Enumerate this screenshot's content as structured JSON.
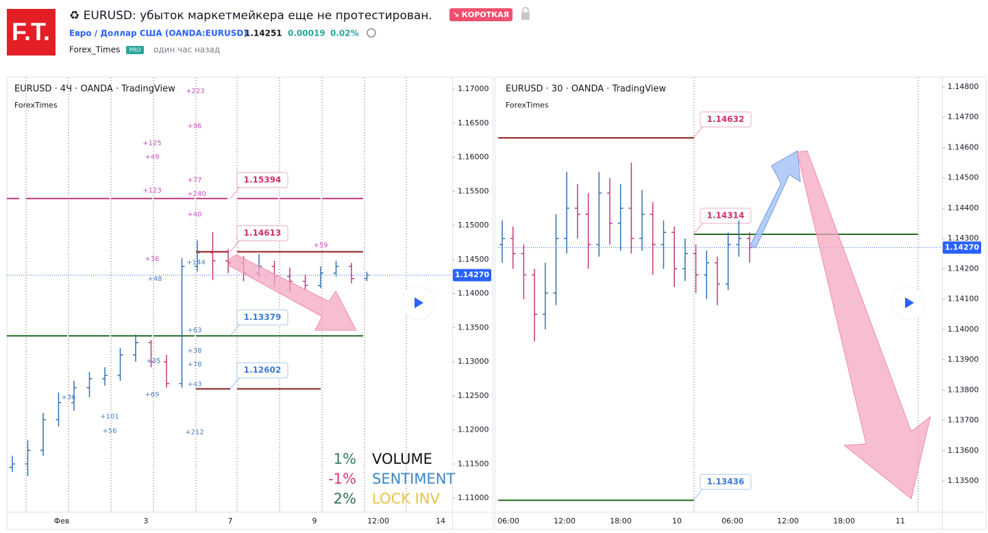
{
  "header": {
    "logo": "F.T.",
    "title": "♻ EURUSD: убыток маркетмейкера еще не протестирован.",
    "badge": "↘ КОРОТКАЯ",
    "symbol": "Евро / Доллар США (OANDA:EURUSD)",
    "price": "1.14251",
    "change": "0.00019",
    "change_pct": "0.02%",
    "author": "Forex_Times",
    "author_badge": "PRO",
    "time": "один час назад"
  },
  "left_chart": {
    "title": "EURUSD · 4Ч · OANDA · TradingView",
    "subtitle": "ForexTimes",
    "yticks": [
      {
        "value": 1.17,
        "label": "1.17000"
      },
      {
        "value": 1.165,
        "label": "1.16500"
      },
      {
        "value": 1.16,
        "label": "1.16000"
      },
      {
        "value": 1.155,
        "label": "1.15500"
      },
      {
        "value": 1.15,
        "label": "1.15000"
      },
      {
        "value": 1.145,
        "label": "1.14500"
      },
      {
        "value": 1.14,
        "label": "1.14000"
      },
      {
        "value": 1.135,
        "label": "1.13500"
      },
      {
        "value": 1.13,
        "label": "1.13000"
      },
      {
        "value": 1.125,
        "label": "1.12500"
      },
      {
        "value": 1.12,
        "label": "1.12000"
      },
      {
        "value": 1.115,
        "label": "1.11500"
      },
      {
        "value": 1.11,
        "label": "1.11000"
      }
    ],
    "xticks": [
      "Фев",
      "3",
      "7",
      "9",
      "12:00",
      "14"
    ],
    "last_price": {
      "value": 1.1427,
      "label": "1.14270"
    },
    "levels": [
      {
        "value": 1.15394,
        "label": "1.15394",
        "color": "#c2357b",
        "label_color": "#d0306a"
      },
      {
        "value": 1.14613,
        "label": "1.14613",
        "color": "#8b1a1a",
        "label_color": "#d0306a"
      },
      {
        "value": 1.13379,
        "label": "1.13379",
        "color": "#1e6b1e",
        "label_color": "#3a7bd5"
      },
      {
        "value": 1.12602,
        "label": "1.12602",
        "color": "#8b1a1a",
        "label_color": "#3a7bd5"
      }
    ],
    "bars": [
      [
        1.1145,
        1.1162,
        1.1138,
        1.115
      ],
      [
        1.115,
        1.1185,
        1.1132,
        1.117
      ],
      [
        1.117,
        1.1225,
        1.1162,
        1.1215
      ],
      [
        1.1215,
        1.1255,
        1.1205,
        1.124
      ],
      [
        1.124,
        1.1272,
        1.1228,
        1.1262
      ],
      [
        1.1262,
        1.1285,
        1.1248,
        1.1275
      ],
      [
        1.1275,
        1.1292,
        1.1265,
        1.128
      ],
      [
        1.128,
        1.132,
        1.1272,
        1.131
      ],
      [
        1.131,
        1.134,
        1.13,
        1.1328
      ],
      [
        1.1328,
        1.1332,
        1.1292,
        1.13
      ],
      [
        1.13,
        1.131,
        1.1262,
        1.1268
      ],
      [
        1.1268,
        1.1452,
        1.1262,
        1.144
      ],
      [
        1.144,
        1.1478,
        1.1432,
        1.146
      ],
      [
        1.146,
        1.149,
        1.142,
        1.1448
      ],
      [
        1.1448,
        1.1465,
        1.143,
        1.1445
      ],
      [
        1.1445,
        1.1455,
        1.1418,
        1.143
      ],
      [
        1.143,
        1.1458,
        1.1425,
        1.144
      ],
      [
        1.144,
        1.1448,
        1.141,
        1.1425
      ],
      [
        1.1425,
        1.1438,
        1.1402,
        1.1418
      ],
      [
        1.1418,
        1.1428,
        1.1405,
        1.1412
      ],
      [
        1.1412,
        1.144,
        1.1408,
        1.143
      ],
      [
        1.143,
        1.1448,
        1.1425,
        1.144
      ],
      [
        1.144,
        1.1445,
        1.1415,
        1.1422
      ],
      [
        1.1422,
        1.1432,
        1.1418,
        1.1427
      ]
    ],
    "annotations": [
      {
        "text": "+223",
        "color": "#c84fc0"
      },
      {
        "text": "+96",
        "color": "#c84fc0"
      },
      {
        "text": "+125",
        "color": "#c84fc0"
      },
      {
        "text": "+49",
        "color": "#c84fc0"
      },
      {
        "text": "+77",
        "color": "#c84fc0"
      },
      {
        "text": "+123",
        "color": "#c84fc0"
      },
      {
        "text": "+240",
        "color": "#c84fc0"
      },
      {
        "text": "+40",
        "color": "#c84fc0"
      },
      {
        "text": "+59",
        "color": "#c84fc0"
      },
      {
        "text": "+36",
        "color": "#c84fc0"
      },
      {
        "text": "+144",
        "color": "#4a7fc0"
      },
      {
        "text": "+48",
        "color": "#4a7fc0"
      },
      {
        "text": "+63",
        "color": "#4a7fc0"
      },
      {
        "text": "+35",
        "color": "#4a7fc0"
      },
      {
        "text": "+38",
        "color": "#4a7fc0"
      },
      {
        "text": "+78",
        "color": "#4a7fc0"
      },
      {
        "text": "+69",
        "color": "#4a7fc0"
      },
      {
        "text": "+36",
        "color": "#4a7fc0"
      },
      {
        "text": "+101",
        "color": "#4a7fc0"
      },
      {
        "text": "+56",
        "color": "#4a7fc0"
      },
      {
        "text": "+43",
        "color": "#4a7fc0"
      },
      {
        "text": "+212",
        "color": "#4a7fc0"
      }
    ],
    "legend": [
      {
        "pct": "1%",
        "pct_color": "#2e7d5a",
        "name": "VOLUME",
        "name_color": "#111111"
      },
      {
        "pct": "-1%",
        "pct_color": "#d63a6e",
        "name": "SENTIMENT",
        "name_color": "#3a86c8"
      },
      {
        "pct": "2%",
        "pct_color": "#2e6f5a",
        "name": "LOCK INV",
        "name_color": "#e8c34a"
      }
    ]
  },
  "right_chart": {
    "title": "EURUSD · 30 · OANDA · TradingView",
    "subtitle": "ForexTimes",
    "yticks": [
      {
        "value": 1.148,
        "label": "1.14800"
      },
      {
        "value": 1.147,
        "label": "1.14700"
      },
      {
        "value": 1.146,
        "label": "1.14600"
      },
      {
        "value": 1.145,
        "label": "1.14500"
      },
      {
        "value": 1.144,
        "label": "1.14400"
      },
      {
        "value": 1.143,
        "label": "1.14300"
      },
      {
        "value": 1.142,
        "label": "1.14200"
      },
      {
        "value": 1.141,
        "label": "1.14100"
      },
      {
        "value": 1.14,
        "label": "1.14000"
      },
      {
        "value": 1.139,
        "label": "1.13900"
      },
      {
        "value": 1.138,
        "label": "1.13800"
      },
      {
        "value": 1.137,
        "label": "1.13700"
      },
      {
        "value": 1.136,
        "label": "1.13600"
      },
      {
        "value": 1.135,
        "label": "1.13500"
      }
    ],
    "xticks": [
      "06:00",
      "12:00",
      "18:00",
      "10",
      "06:00",
      "12:00",
      "18:00",
      "11"
    ],
    "last_price": {
      "value": 1.1427,
      "label": "1.14270"
    },
    "levels": [
      {
        "value": 1.14632,
        "label": "1.14632",
        "color": "#8b1a1a",
        "label_color": "#d0306a"
      },
      {
        "value": 1.14314,
        "label": "1.14314",
        "color": "#1e6b1e",
        "label_color": "#d0306a"
      },
      {
        "value": 1.13436,
        "label": "1.13436",
        "color": "#1e6b1e",
        "label_color": "#3a7bd5"
      }
    ],
    "bars": [
      [
        1.1428,
        1.1436,
        1.1422,
        1.143
      ],
      [
        1.143,
        1.1434,
        1.142,
        1.1425
      ],
      [
        1.1425,
        1.1428,
        1.141,
        1.1418
      ],
      [
        1.1418,
        1.142,
        1.1396,
        1.1405
      ],
      [
        1.1405,
        1.1422,
        1.14,
        1.1412
      ],
      [
        1.1412,
        1.1438,
        1.1408,
        1.143
      ],
      [
        1.143,
        1.1452,
        1.1425,
        1.144
      ],
      [
        1.144,
        1.1448,
        1.143,
        1.1438
      ],
      [
        1.1438,
        1.1445,
        1.142,
        1.1428
      ],
      [
        1.1428,
        1.1452,
        1.1424,
        1.1445
      ],
      [
        1.1445,
        1.145,
        1.1428,
        1.1435
      ],
      [
        1.1435,
        1.1448,
        1.1426,
        1.144
      ],
      [
        1.144,
        1.1455,
        1.1425,
        1.143
      ],
      [
        1.143,
        1.1446,
        1.1426,
        1.1438
      ],
      [
        1.1438,
        1.1442,
        1.1418,
        1.1428
      ],
      [
        1.1428,
        1.1436,
        1.142,
        1.1432
      ],
      [
        1.1432,
        1.1434,
        1.1414,
        1.142
      ],
      [
        1.142,
        1.143,
        1.1416,
        1.1425
      ],
      [
        1.1425,
        1.1428,
        1.1412,
        1.1418
      ],
      [
        1.1418,
        1.1426,
        1.141,
        1.1422
      ],
      [
        1.1422,
        1.1424,
        1.1408,
        1.1415
      ],
      [
        1.1415,
        1.1432,
        1.1413,
        1.1428
      ],
      [
        1.1428,
        1.1436,
        1.1424,
        1.143
      ],
      [
        1.143,
        1.1432,
        1.1422,
        1.1427
      ]
    ]
  }
}
